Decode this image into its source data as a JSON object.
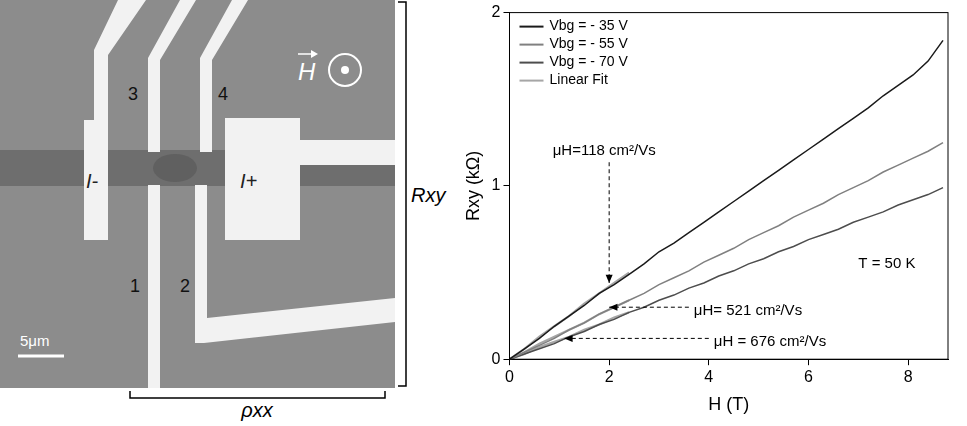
{
  "device": {
    "electrode_labels": [
      "3",
      "4",
      "1",
      "2"
    ],
    "current_minus": "I-",
    "current_plus": "I+",
    "field": "H",
    "hall": "Rxy",
    "longitudinal": "ρxx",
    "scale_bar": "5μm"
  },
  "chart_data": {
    "type": "line",
    "x": [
      0,
      0.3,
      0.6,
      0.9,
      1.2,
      1.5,
      1.8,
      2.1,
      2.4,
      2.7,
      3.0,
      3.3,
      3.6,
      3.9,
      4.2,
      4.5,
      4.8,
      5.1,
      5.4,
      5.7,
      6.0,
      6.3,
      6.6,
      6.9,
      7.2,
      7.5,
      7.8,
      8.1,
      8.4,
      8.7
    ],
    "series": [
      {
        "name": "Vbg = - 35 V",
        "color": "#1a1a1a",
        "values": [
          0,
          0.06,
          0.12,
          0.19,
          0.25,
          0.31,
          0.38,
          0.43,
          0.49,
          0.55,
          0.62,
          0.67,
          0.73,
          0.79,
          0.85,
          0.91,
          0.97,
          1.03,
          1.09,
          1.15,
          1.21,
          1.27,
          1.33,
          1.39,
          1.45,
          1.52,
          1.58,
          1.64,
          1.72,
          1.84
        ]
      },
      {
        "name": "Vbg = - 55 V",
        "color": "#808080",
        "values": [
          0,
          0.04,
          0.08,
          0.12,
          0.17,
          0.21,
          0.26,
          0.3,
          0.34,
          0.38,
          0.43,
          0.47,
          0.51,
          0.56,
          0.6,
          0.64,
          0.69,
          0.73,
          0.77,
          0.82,
          0.86,
          0.9,
          0.95,
          0.99,
          1.03,
          1.08,
          1.12,
          1.16,
          1.2,
          1.25
        ]
      },
      {
        "name": "Vbg = - 70 V",
        "color": "#4d4d4d",
        "values": [
          0,
          0.03,
          0.06,
          0.09,
          0.13,
          0.16,
          0.2,
          0.23,
          0.27,
          0.3,
          0.34,
          0.37,
          0.41,
          0.44,
          0.48,
          0.51,
          0.55,
          0.58,
          0.62,
          0.65,
          0.69,
          0.72,
          0.75,
          0.79,
          0.82,
          0.85,
          0.89,
          0.92,
          0.95,
          0.99
        ]
      },
      {
        "name": "Linear Fit",
        "color": "#a6a6a6",
        "values": [
          0,
          0.06,
          0.13,
          0.19,
          0.25,
          0.32,
          0.38,
          0.44,
          0.5,
          null,
          null,
          null,
          null,
          null,
          null,
          null,
          null,
          null,
          null,
          null,
          null,
          null,
          null,
          null,
          null,
          null,
          null,
          null,
          null,
          null
        ]
      },
      {
        "color": "#a6a6a6",
        "values": [
          0,
          0.04,
          0.09,
          0.13,
          0.17,
          0.21,
          0.26,
          0.3,
          0.34,
          null,
          null,
          null,
          null,
          null,
          null,
          null,
          null,
          null,
          null,
          null,
          null,
          null,
          null,
          null,
          null,
          null,
          null,
          null,
          null,
          null
        ]
      },
      {
        "color": "#a6a6a6",
        "values": [
          0,
          0.03,
          0.07,
          0.1,
          0.13,
          0.17,
          0.2,
          0.24,
          0.27,
          null,
          null,
          null,
          null,
          null,
          null,
          null,
          null,
          null,
          null,
          null,
          null,
          null,
          null,
          null,
          null,
          null,
          null,
          null,
          null,
          null
        ]
      }
    ],
    "xlim": [
      0,
      8.8
    ],
    "xticks": [
      0,
      2,
      4,
      6,
      8
    ],
    "ylim": [
      0,
      2
    ],
    "yticks": [
      0,
      1,
      2
    ],
    "x_label": "H (T)",
    "y_label": "Rxy (kΩ)",
    "legend": "upper left",
    "grid": false,
    "annotations": [
      {
        "text": "μH=118 cm²/Vs",
        "xy": [
          2.0,
          0.44
        ],
        "xytext": [
          1.9,
          1.2
        ]
      },
      {
        "text": "μH= 521 cm²/Vs",
        "xy": [
          2.0,
          0.3
        ],
        "xytext": [
          3.7,
          0.28
        ]
      },
      {
        "text": "μH = 676 cm²/Vs",
        "xy": [
          1.1,
          0.12
        ],
        "xytext": [
          4.1,
          0.1
        ]
      },
      {
        "text": "T = 50 K",
        "xytext": [
          7.0,
          0.55
        ]
      }
    ]
  }
}
